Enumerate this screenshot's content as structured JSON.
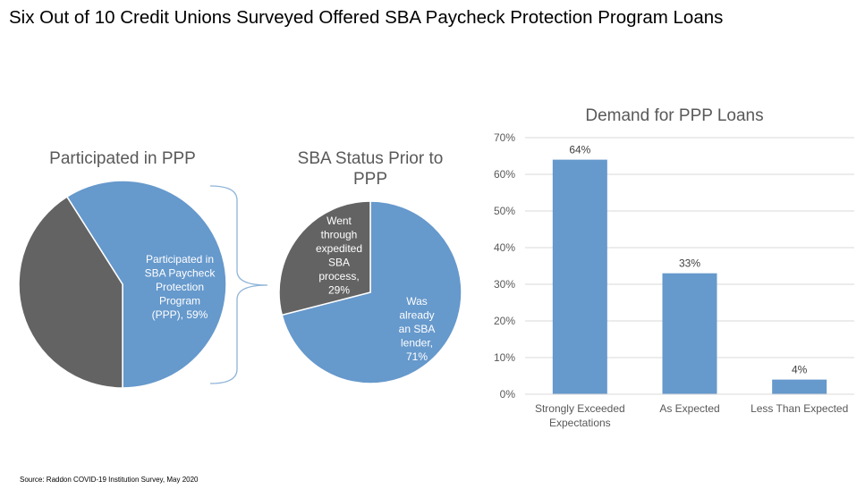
{
  "title": "Six Out of 10 Credit Unions Surveyed Offered SBA Paycheck Protection Program Loans",
  "source": "Source: Raddon COVID-19 Institution Survey, May 2020",
  "colors": {
    "blue": "#6699CC",
    "gray": "#636363",
    "bracket": "#8EB4D8",
    "grid": "#D9D9D9"
  },
  "chart_data": [
    {
      "type": "pie",
      "title": "Participated in PPP",
      "slices": [
        {
          "label_lines": [
            "Participated in",
            "SBA Paycheck",
            "Protection",
            "Program",
            "(PPP), 59%"
          ],
          "value": 59,
          "color": "#6699CC"
        },
        {
          "label_lines": [],
          "value": 41,
          "color": "#636363"
        }
      ]
    },
    {
      "type": "pie",
      "title_lines": [
        "SBA Status Prior to",
        "PPP"
      ],
      "slices": [
        {
          "label_lines": [
            "Was",
            "already",
            "an SBA",
            "lender,",
            "71%"
          ],
          "value": 71,
          "color": "#6699CC"
        },
        {
          "label_lines": [
            "Went",
            "through",
            "expedited",
            "SBA",
            "process,",
            "29%"
          ],
          "value": 29,
          "color": "#636363"
        }
      ]
    },
    {
      "type": "bar",
      "title": "Demand for PPP Loans",
      "categories": [
        [
          "Strongly Exceeded",
          "Expectations"
        ],
        [
          "As Expected"
        ],
        [
          "Less Than Expected"
        ]
      ],
      "values": [
        64,
        33,
        4
      ],
      "data_labels": [
        "64%",
        "33%",
        "4%"
      ],
      "ylim": [
        0,
        70
      ],
      "yticks": [
        0,
        10,
        20,
        30,
        40,
        50,
        60,
        70
      ],
      "ytick_labels": [
        "0%",
        "10%",
        "20%",
        "30%",
        "40%",
        "50%",
        "60%",
        "70%"
      ],
      "grid": true,
      "color": "#6699CC"
    }
  ]
}
